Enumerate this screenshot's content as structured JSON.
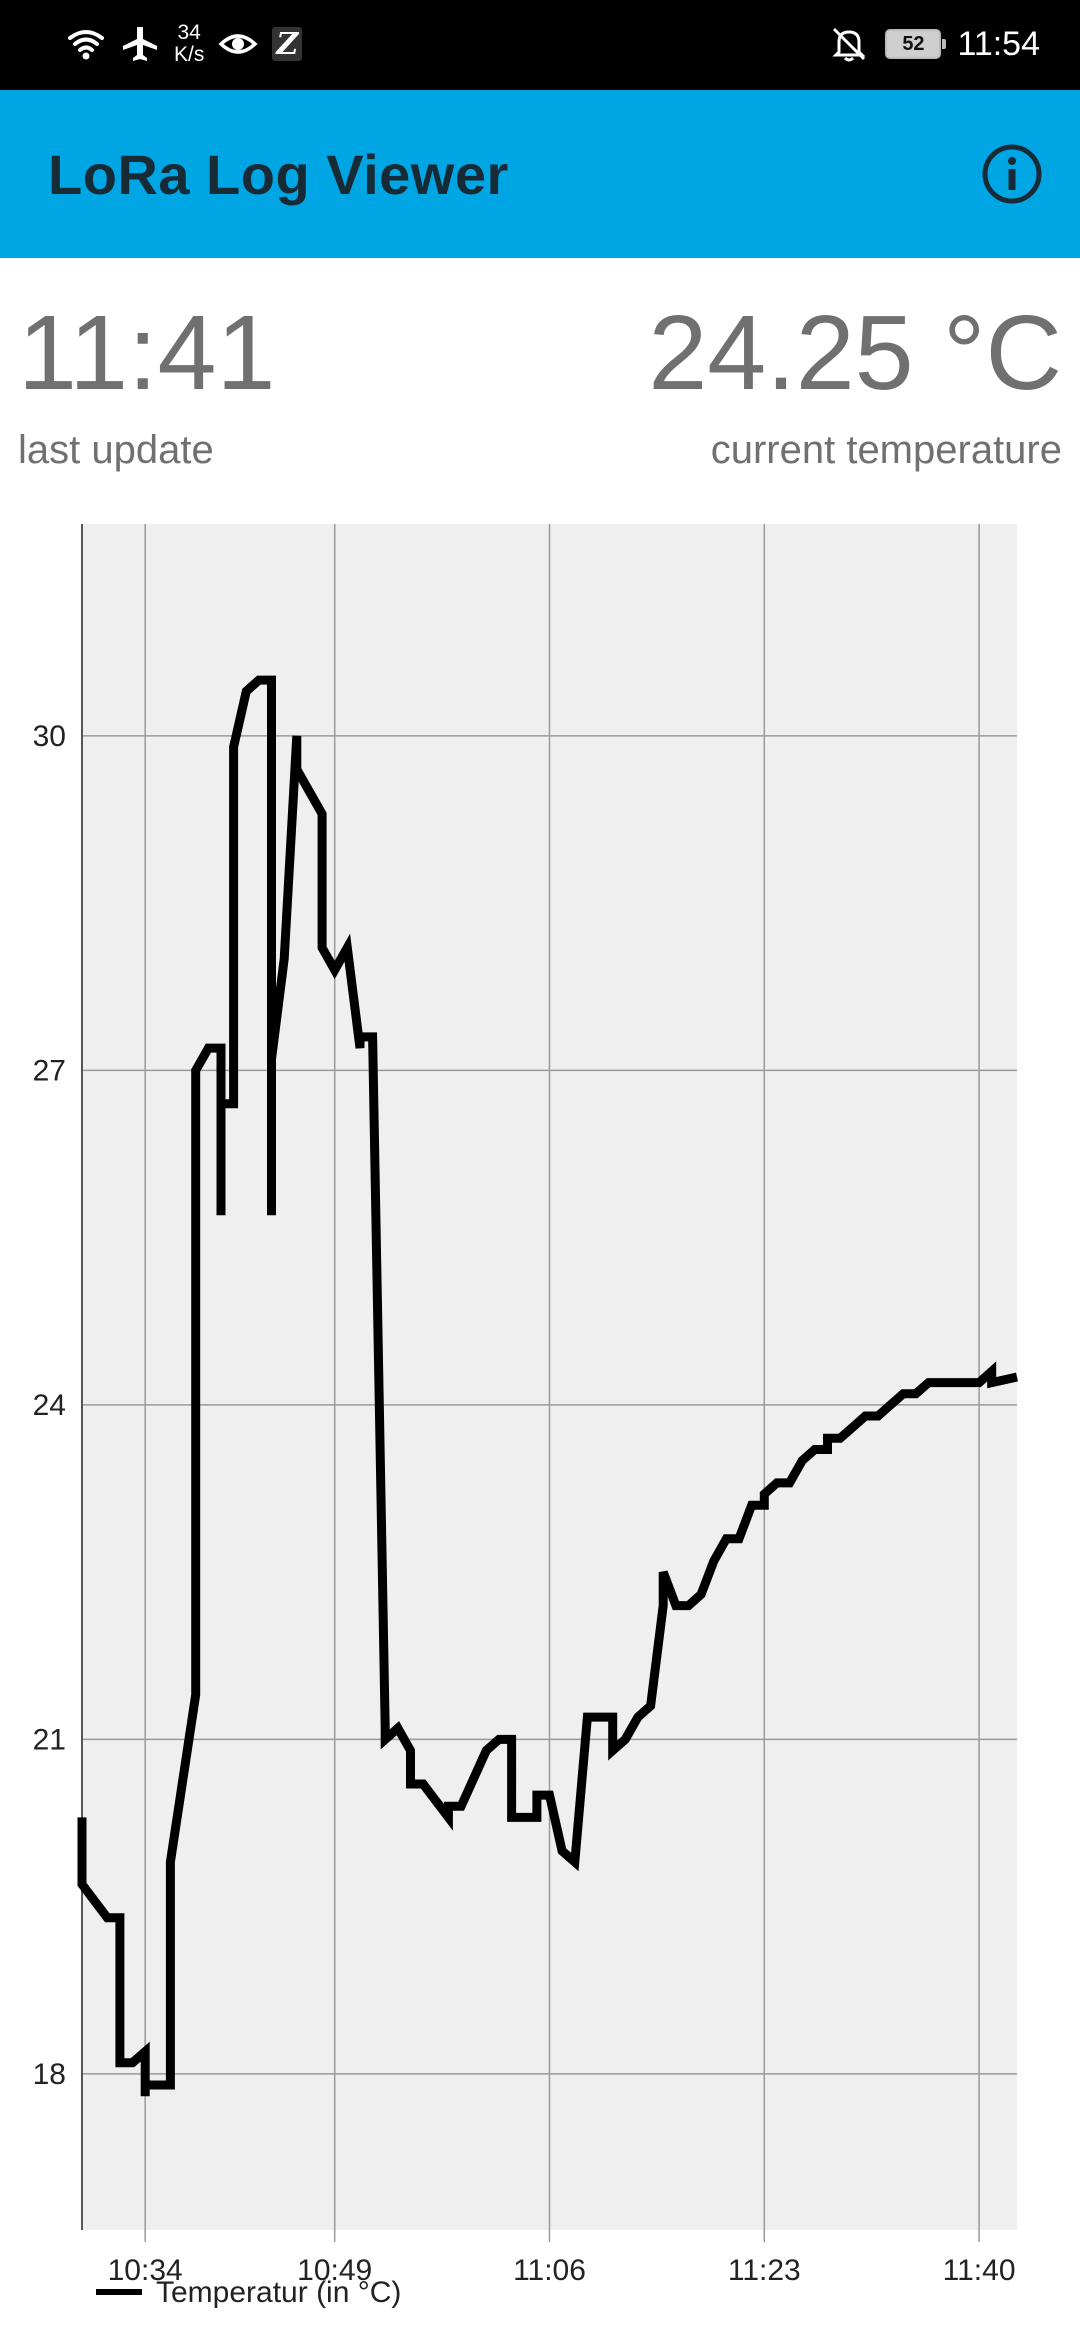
{
  "status_bar": {
    "speed_value": "34",
    "speed_unit": "K/s",
    "battery": "52",
    "time": "11:54",
    "icons": [
      "wifi-icon",
      "airplane-icon",
      "eye-icon",
      "z-app-icon",
      "bell-off-icon",
      "battery-icon"
    ]
  },
  "app_bar": {
    "title": "LoRa Log Viewer",
    "info_icon": "info-icon",
    "color": "#00a5e4"
  },
  "summary": {
    "last_update_value": "11:41",
    "last_update_label": "last update",
    "temperature_value": "24.25 °C",
    "temperature_label": "current temperature"
  },
  "chart_data": {
    "type": "line",
    "title": "",
    "xlabel": "",
    "ylabel": "",
    "x_ticks": [
      "10:34",
      "10:49",
      "11:06",
      "11:23",
      "11:40"
    ],
    "x_tick_minutes": [
      634,
      649,
      666,
      683,
      700
    ],
    "xlim": [
      629,
      703
    ],
    "y_ticks": [
      18,
      21,
      24,
      27,
      30
    ],
    "ylim": [
      16.6,
      31.9
    ],
    "grid": true,
    "legend_position": "bottom-left",
    "series": [
      {
        "name": "Temperatur (in °C)",
        "color": "#000000",
        "x": [
          "10:29",
          "10:29",
          "10:31",
          "10:32",
          "10:32",
          "10:33",
          "10:34",
          "10:34",
          "10:34",
          "10:35",
          "10:36",
          "10:36",
          "10:36",
          "10:38",
          "10:38",
          "10:38",
          "10:39",
          "10:40",
          "10:40",
          "10:40",
          "10:40",
          "10:41",
          "10:41",
          "10:41",
          "10:42",
          "10:43",
          "10:44",
          "10:44",
          "10:44",
          "10:44",
          "10:45",
          "10:46",
          "10:46",
          "10:48",
          "10:48",
          "10:48",
          "10:49",
          "10:50",
          "10:51",
          "10:51",
          "10:52",
          "10:53",
          "10:53",
          "10:54",
          "10:55",
          "10:55",
          "10:56",
          "10:58",
          "10:58",
          "10:59",
          "11:01",
          "11:02",
          "11:03",
          "11:03",
          "11:04",
          "11:05",
          "11:05",
          "11:06",
          "11:07",
          "11:08",
          "11:08",
          "11:09",
          "11:10",
          "11:10",
          "11:11",
          "11:11",
          "11:12",
          "11:13",
          "11:13",
          "11:14",
          "11:15",
          "11:15",
          "11:16",
          "11:17",
          "11:18",
          "11:18",
          "11:19",
          "11:20",
          "11:21",
          "11:22",
          "11:23",
          "11:23",
          "11:24",
          "11:25",
          "11:26",
          "11:27",
          "11:28",
          "11:28",
          "11:29",
          "11:30",
          "11:31",
          "11:32",
          "11:33",
          "11:34",
          "11:35",
          "11:36",
          "11:38",
          "11:38",
          "11:39",
          "11:40",
          "11:41",
          "11:41",
          "11:43"
        ],
        "y": [
          20.3,
          19.7,
          19.4,
          19.4,
          18.1,
          18.1,
          18.2,
          17.8,
          17.9,
          17.9,
          17.9,
          19.9,
          19.9,
          21.4,
          26.9,
          27.0,
          27.2,
          27.2,
          25.7,
          26.7,
          26.7,
          26.7,
          26.7,
          29.9,
          30.4,
          30.5,
          30.5,
          25.7,
          26.9,
          27.1,
          28.0,
          30.0,
          29.7,
          29.3,
          28.6,
          28.1,
          27.9,
          28.1,
          27.2,
          27.3,
          27.3,
          21.1,
          21.0,
          21.1,
          20.9,
          20.6,
          20.6,
          20.3,
          20.4,
          20.4,
          20.9,
          21.0,
          21.0,
          20.3,
          20.3,
          20.3,
          20.5,
          20.5,
          20.0,
          19.9,
          19.9,
          21.2,
          21.2,
          21.2,
          21.2,
          20.9,
          21.0,
          21.2,
          21.2,
          21.3,
          22.2,
          22.5,
          22.2,
          22.2,
          22.3,
          22.3,
          22.6,
          22.8,
          22.8,
          23.1,
          23.1,
          23.2,
          23.3,
          23.3,
          23.5,
          23.6,
          23.6,
          23.7,
          23.7,
          23.8,
          23.9,
          23.9,
          24.0,
          24.1,
          24.1,
          24.2,
          24.2,
          24.2,
          24.2,
          24.2,
          24.3,
          24.2,
          24.25
        ]
      }
    ]
  }
}
